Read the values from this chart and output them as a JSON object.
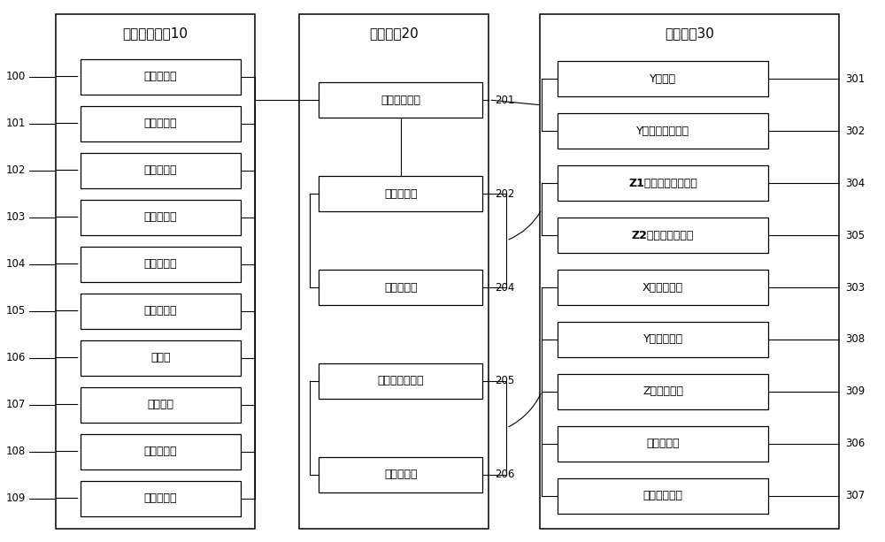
{
  "bg_color": "#ffffff",
  "fig_width": 10.0,
  "fig_height": 6.13,
  "unit1_title": "信号输入单元10",
  "unit2_title": "控制单元20",
  "unit3_title": "执行单元30",
  "unit1_boxes": [
    {
      "label": "光电传感器",
      "id": "100"
    },
    {
      "label": "激光传感器",
      "id": "101"
    },
    {
      "label": "金属传感器",
      "id": "102"
    },
    {
      "label": "色标传感器",
      "id": "103"
    },
    {
      "label": "真空传感器",
      "id": "104"
    },
    {
      "label": "压力传感器",
      "id": "105"
    },
    {
      "label": "触控屏",
      "id": "106"
    },
    {
      "label": "操作按钮",
      "id": "107"
    },
    {
      "label": "安全感应器",
      "id": "108"
    },
    {
      "label": "磁环感应器",
      "id": "109"
    }
  ],
  "unit2_boxes": [
    {
      "label": "数据采集模块",
      "id": "201",
      "group": 1
    },
    {
      "label": "中央处理器",
      "id": "202",
      "group": 2
    },
    {
      "label": "气驱动模块",
      "id": "204",
      "group": 2
    },
    {
      "label": "闭环伺服编码器",
      "id": "205",
      "group": 3
    },
    {
      "label": "电驱动模块",
      "id": "206",
      "group": 3
    }
  ],
  "unit3_boxes": [
    {
      "label": "Y轴载具",
      "id": "301",
      "bold": false
    },
    {
      "label": "Y轴面壳扣合机构",
      "id": "302",
      "bold": false
    },
    {
      "label": "Z1轴电路板扣合机构",
      "id": "304",
      "bold": true
    },
    {
      "label": "Z2轴铝壳扣合机构",
      "id": "305",
      "bold": true
    },
    {
      "label": "X轴输送机构",
      "id": "303",
      "bold": false
    },
    {
      "label": "Y轴输送机构",
      "id": "308",
      "bold": false
    },
    {
      "label": "Z轴输送机构",
      "id": "309",
      "bold": false
    },
    {
      "label": "静电消除器",
      "id": "306",
      "bold": false
    },
    {
      "label": "安全防护机构",
      "id": "307",
      "bold": false
    }
  ],
  "connections": [
    {
      "from": "201",
      "to": [
        "301",
        "302"
      ]
    },
    {
      "from": "202",
      "to": [
        "304",
        "305"
      ]
    },
    {
      "from": "204",
      "to": [
        "304",
        "305"
      ]
    },
    {
      "from": "205",
      "to": [
        "303",
        "308",
        "309"
      ]
    },
    {
      "from": "206",
      "to": [
        "306",
        "307",
        "308",
        "309"
      ]
    }
  ],
  "line_color": "#000000",
  "box_edge_color": "#000000",
  "text_color": "#000000",
  "font_size": 9,
  "title_font_size": 11,
  "label_font_size": 8.5
}
